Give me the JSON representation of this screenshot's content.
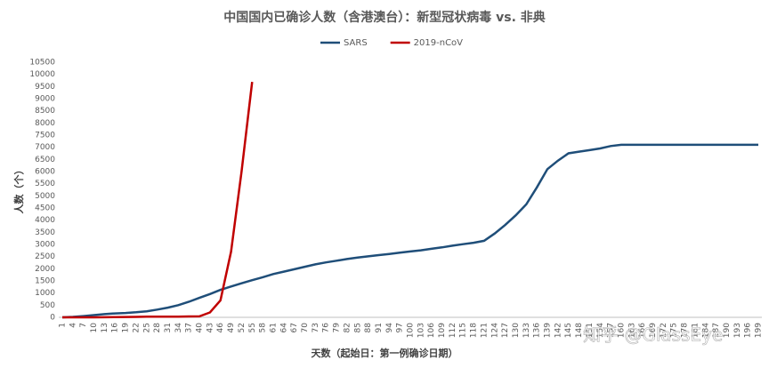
{
  "chart_data": {
    "type": "line",
    "title": "中国国内已确诊人数（含港澳台）：新型冠状病毒 vs. 非典",
    "x_label": "天数（起始日：第一例确诊日期）",
    "y_label": "人数（个）",
    "watermark": "知乎 @GlassEye",
    "categories": [
      "1",
      "4",
      "7",
      "10",
      "13",
      "16",
      "19",
      "22",
      "25",
      "28",
      "31",
      "34",
      "37",
      "40",
      "43",
      "46",
      "49",
      "52",
      "55",
      "58",
      "61",
      "64",
      "67",
      "70",
      "73",
      "76",
      "79",
      "82",
      "85",
      "88",
      "91",
      "94",
      "97",
      "100",
      "103",
      "106",
      "109",
      "112",
      "115",
      "118",
      "121",
      "124",
      "127",
      "130",
      "133",
      "136",
      "139",
      "142",
      "145",
      "148",
      "151",
      "154",
      "157",
      "160",
      "163",
      "166",
      "169",
      "172",
      "175",
      "178",
      "181",
      "184",
      "187",
      "190",
      "193",
      "196",
      "199"
    ],
    "series": [
      {
        "name": "SARS",
        "color": "#1f4e79",
        "values": [
          0,
          20,
          50,
          90,
          130,
          160,
          180,
          210,
          250,
          320,
          400,
          500,
          640,
          800,
          960,
          1130,
          1270,
          1400,
          1530,
          1650,
          1780,
          1880,
          1980,
          2080,
          2180,
          2260,
          2330,
          2400,
          2460,
          2510,
          2560,
          2610,
          2660,
          2710,
          2760,
          2820,
          2880,
          2950,
          3010,
          3070,
          3150,
          3450,
          3800,
          4200,
          4650,
          5350,
          6100,
          6450,
          6750,
          6820,
          6880,
          6950,
          7050,
          7100,
          7100,
          7100,
          7100,
          7100,
          7100,
          7100,
          7100,
          7100,
          7100,
          7100,
          7100,
          7100,
          7100
        ]
      },
      {
        "name": "2019-nCoV",
        "color": "#c00000",
        "values": [
          0,
          0,
          0,
          0,
          5,
          10,
          15,
          20,
          25,
          30,
          30,
          30,
          35,
          40,
          200,
          700,
          2700,
          6000,
          9692,
          null,
          null,
          null,
          null,
          null,
          null,
          null,
          null,
          null,
          null,
          null,
          null,
          null,
          null,
          null,
          null,
          null,
          null,
          null,
          null,
          null,
          null,
          null,
          null,
          null,
          null,
          null,
          null,
          null,
          null,
          null,
          null,
          null,
          null,
          null,
          null,
          null,
          null,
          null,
          null,
          null,
          null,
          null,
          null,
          null,
          null,
          null,
          null
        ]
      }
    ],
    "ylim": [
      0,
      10500
    ],
    "yticks": [
      0,
      500,
      1000,
      1500,
      2000,
      2500,
      3000,
      3500,
      4000,
      4500,
      5000,
      5500,
      6000,
      6500,
      7000,
      7500,
      8000,
      8500,
      9000,
      9500,
      10000,
      10500
    ],
    "grid": false,
    "legend": "top"
  }
}
